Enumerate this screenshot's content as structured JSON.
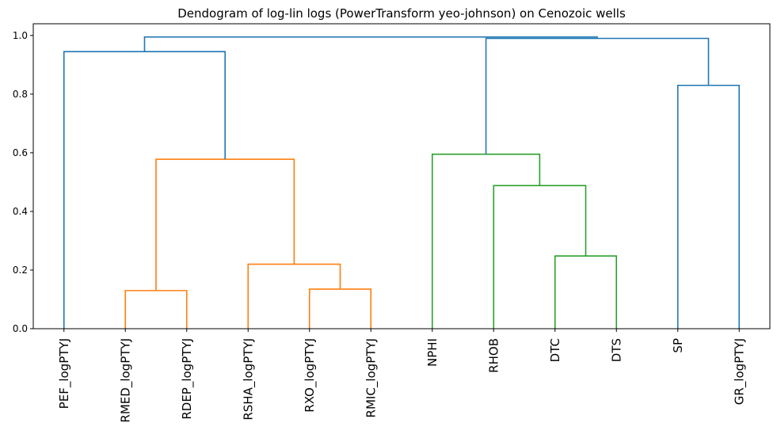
{
  "chart_data": {
    "type": "dendrogram",
    "title": "Dendogram of log-lin logs (PowerTransform yeo-johnson) on Cenozoic wells",
    "xlabel": "",
    "ylabel": "",
    "ylim": [
      0,
      1.04
    ],
    "yticks": [
      "0.0",
      "0.2",
      "0.4",
      "0.6",
      "0.8",
      "1.0"
    ],
    "ytick_values": [
      0.0,
      0.2,
      0.4,
      0.6,
      0.8,
      1.0
    ],
    "grid": false,
    "leaves": [
      "PEF_logPTYJ",
      "RMED_logPTYJ",
      "RDEP_logPTYJ",
      "RSHA_logPTYJ",
      "RXO_logPTYJ",
      "RMIC_logPTYJ",
      "NPHI",
      "RHOB",
      "DTC",
      "DTS",
      "SP",
      "GR_logPTYJ"
    ],
    "colors": {
      "above_threshold": "#1f77b4",
      "cluster_1": "#ff7f0e",
      "cluster_2": "#2ca02c"
    },
    "merges": [
      {
        "id": "m1",
        "left": "RMED_logPTYJ",
        "right": "RDEP_logPTYJ",
        "height": 0.13,
        "color": "cluster_1"
      },
      {
        "id": "m2",
        "left": "RXO_logPTYJ",
        "right": "RMIC_logPTYJ",
        "height": 0.135,
        "color": "cluster_1"
      },
      {
        "id": "m3",
        "left": "RSHA_logPTYJ",
        "right": "m2",
        "height": 0.22,
        "color": "cluster_1"
      },
      {
        "id": "m4",
        "left": "m1",
        "right": "m3",
        "height": 0.578,
        "color": "cluster_1"
      },
      {
        "id": "m5",
        "left": "PEF_logPTYJ",
        "right": "m4",
        "height": 0.945,
        "color": "above_threshold"
      },
      {
        "id": "m6",
        "left": "DTC",
        "right": "DTS",
        "height": 0.248,
        "color": "cluster_2"
      },
      {
        "id": "m7",
        "left": "RHOB",
        "right": "m6",
        "height": 0.488,
        "color": "cluster_2"
      },
      {
        "id": "m8",
        "left": "NPHI",
        "right": "m7",
        "height": 0.595,
        "color": "cluster_2"
      },
      {
        "id": "m9",
        "left": "SP",
        "right": "GR_logPTYJ",
        "height": 0.83,
        "color": "above_threshold"
      },
      {
        "id": "m10",
        "left": "m8",
        "right": "m9",
        "height": 0.99,
        "color": "above_threshold"
      },
      {
        "id": "m11",
        "left": "m5",
        "right": "m10",
        "height": 0.995,
        "color": "above_threshold"
      }
    ]
  }
}
